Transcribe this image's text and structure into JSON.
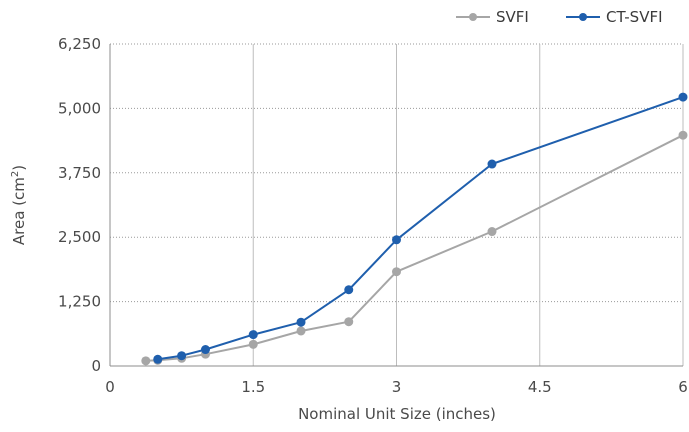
{
  "chart_data": {
    "type": "line",
    "xlabel": "Nominal Unit Size (inches)",
    "ylabel": "Area (cm²)",
    "xlim": [
      0,
      6
    ],
    "ylim": [
      0,
      6250
    ],
    "x_ticks": [
      0,
      1.5,
      3,
      4.5,
      6
    ],
    "x_tick_labels": [
      "0",
      "1.5",
      "3",
      "4.5",
      "6"
    ],
    "y_ticks": [
      0,
      1250,
      2500,
      3750,
      5000,
      6250
    ],
    "y_tick_labels": [
      "0",
      "1,250",
      "2,500",
      "3,750",
      "5,000",
      "6,250"
    ],
    "grid": {
      "vertical": "solid",
      "horizontal": "dotted"
    },
    "legend_position": "top-right",
    "series": [
      {
        "name": "SVFI",
        "color": "#a6a6a6",
        "points": [
          {
            "x": 0.375,
            "y": 100
          },
          {
            "x": 0.5,
            "y": 110
          },
          {
            "x": 0.75,
            "y": 150
          },
          {
            "x": 1,
            "y": 230
          },
          {
            "x": 1.5,
            "y": 420
          },
          {
            "x": 2,
            "y": 680
          },
          {
            "x": 2.5,
            "y": 860
          },
          {
            "x": 3,
            "y": 1830
          },
          {
            "x": 4,
            "y": 2610
          },
          {
            "x": 6,
            "y": 4480
          }
        ]
      },
      {
        "name": "CT-SVFI",
        "color": "#1f5fad",
        "points": [
          {
            "x": 0.5,
            "y": 130
          },
          {
            "x": 0.75,
            "y": 200
          },
          {
            "x": 1,
            "y": 320
          },
          {
            "x": 1.5,
            "y": 610
          },
          {
            "x": 2,
            "y": 850
          },
          {
            "x": 2.5,
            "y": 1480
          },
          {
            "x": 3,
            "y": 2450
          },
          {
            "x": 4,
            "y": 3920
          },
          {
            "x": 6,
            "y": 5220
          }
        ]
      }
    ]
  }
}
